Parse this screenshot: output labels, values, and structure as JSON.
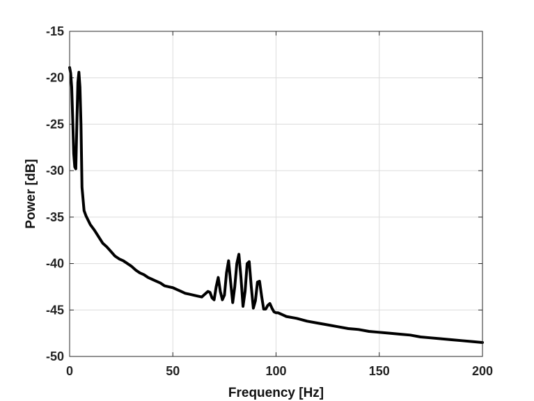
{
  "chart_data": {
    "type": "line",
    "title": "",
    "xlabel": "Frequency [Hz]",
    "ylabel": "Power [dB]",
    "xlim": [
      0,
      200
    ],
    "ylim": [
      -50,
      -15
    ],
    "xticks": [
      0,
      50,
      100,
      150,
      200
    ],
    "yticks": [
      -50,
      -45,
      -40,
      -35,
      -30,
      -25,
      -20,
      -15
    ],
    "grid": true,
    "legend": "none",
    "line_color": "#000000",
    "series": [
      {
        "x": [
          0,
          0.5,
          1,
          1.5,
          2,
          2.5,
          3,
          3.5,
          4,
          4.5,
          5,
          5.5,
          6,
          7,
          8,
          10,
          12,
          14,
          16,
          18,
          20,
          22,
          24,
          26,
          28,
          30,
          32,
          34,
          36,
          38,
          40,
          42,
          44,
          46,
          48,
          50,
          52,
          54,
          56,
          58,
          60,
          62,
          64,
          65,
          66,
          67,
          68,
          69,
          70,
          71,
          72,
          73,
          74,
          75,
          76,
          77,
          78,
          79,
          80,
          81,
          82,
          83,
          84,
          85,
          86,
          87,
          88,
          89,
          90,
          91,
          92,
          93,
          94,
          95,
          96,
          97,
          98,
          99,
          100,
          101,
          102,
          103,
          105,
          110,
          115,
          120,
          125,
          130,
          135,
          140,
          145,
          150,
          155,
          160,
          165,
          170,
          175,
          180,
          185,
          190,
          195,
          200
        ],
        "y": [
          -18.9,
          -19.5,
          -21.0,
          -24.5,
          -28.2,
          -29.6,
          -29.8,
          -25.0,
          -20.5,
          -19.4,
          -21.0,
          -25.0,
          -31.8,
          -34.3,
          -34.9,
          -35.8,
          -36.4,
          -37.1,
          -37.8,
          -38.2,
          -38.7,
          -39.2,
          -39.5,
          -39.7,
          -40.0,
          -40.3,
          -40.7,
          -41.0,
          -41.2,
          -41.5,
          -41.7,
          -41.9,
          -42.1,
          -42.4,
          -42.5,
          -42.6,
          -42.8,
          -43.0,
          -43.2,
          -43.3,
          -43.4,
          -43.5,
          -43.6,
          -43.4,
          -43.2,
          -43.0,
          -43.1,
          -43.7,
          -43.9,
          -42.5,
          -41.5,
          -43.0,
          -43.9,
          -43.4,
          -41.0,
          -39.7,
          -42.0,
          -44.2,
          -42.5,
          -40.0,
          -39.0,
          -41.5,
          -44.6,
          -43.0,
          -40.0,
          -39.8,
          -42.5,
          -44.8,
          -44.0,
          -42.0,
          -41.9,
          -43.5,
          -44.9,
          -44.9,
          -44.5,
          -44.3,
          -44.8,
          -45.2,
          -45.3,
          -45.3,
          -45.4,
          -45.5,
          -45.7,
          -45.9,
          -46.2,
          -46.4,
          -46.6,
          -46.8,
          -47.0,
          -47.1,
          -47.3,
          -47.4,
          -47.5,
          -47.6,
          -47.7,
          -47.9,
          -48.0,
          -48.1,
          -48.2,
          -48.3,
          -48.4,
          -48.5
        ]
      }
    ]
  }
}
